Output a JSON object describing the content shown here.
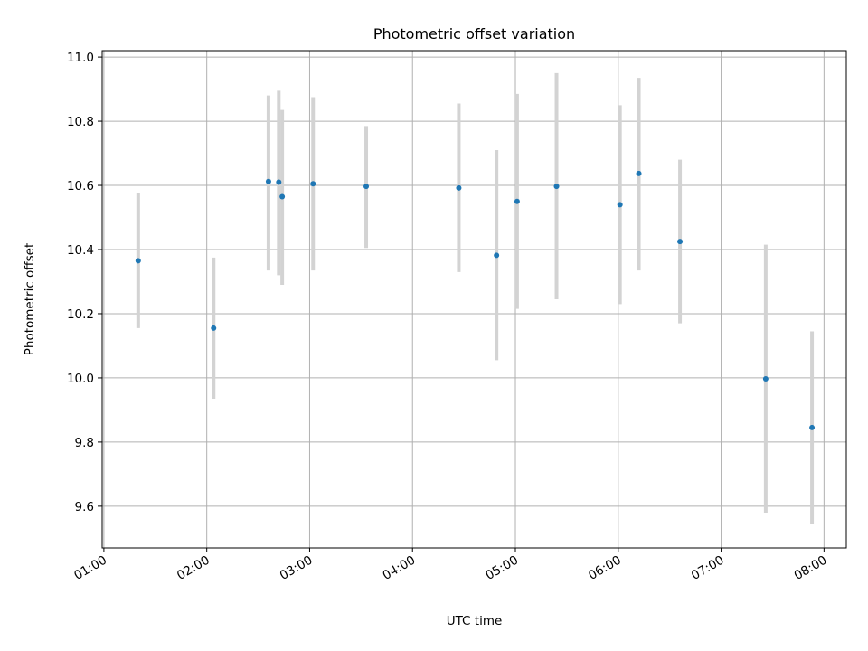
{
  "chart_data": {
    "type": "scatter",
    "title": "Photometric offset variation",
    "xlabel": "UTC time",
    "ylabel": "Photometric offset",
    "x_tick_labels": [
      "01:00",
      "02:00",
      "03:00",
      "04:00",
      "05:00",
      "06:00",
      "07:00",
      "08:00"
    ],
    "y_tick_labels": [
      "9.6",
      "9.8",
      "10.0",
      "10.2",
      "10.4",
      "10.6",
      "10.8",
      "11.0"
    ],
    "xlim": [
      "00:59",
      "08:13"
    ],
    "ylim": [
      9.47,
      11.02
    ],
    "grid": true,
    "colors": {
      "point": "#1f77b4",
      "errorbar": "#d3d3d3",
      "grid": "#b0b0b0"
    },
    "points": [
      {
        "x": "01:20",
        "y": 10.365,
        "low": 10.155,
        "high": 10.575
      },
      {
        "x": "02:04",
        "y": 10.155,
        "low": 9.935,
        "high": 10.375
      },
      {
        "x": "02:36",
        "y": 10.612,
        "low": 10.335,
        "high": 10.88
      },
      {
        "x": "02:42",
        "y": 10.61,
        "low": 10.32,
        "high": 10.895
      },
      {
        "x": "02:44",
        "y": 10.565,
        "low": 10.29,
        "high": 10.835
      },
      {
        "x": "03:02",
        "y": 10.605,
        "low": 10.335,
        "high": 10.875
      },
      {
        "x": "03:33",
        "y": 10.597,
        "low": 10.405,
        "high": 10.785
      },
      {
        "x": "04:27",
        "y": 10.592,
        "low": 10.33,
        "high": 10.855
      },
      {
        "x": "04:49",
        "y": 10.382,
        "low": 10.055,
        "high": 10.71
      },
      {
        "x": "05:01",
        "y": 10.55,
        "low": 10.215,
        "high": 10.885
      },
      {
        "x": "05:24",
        "y": 10.597,
        "low": 10.245,
        "high": 10.95
      },
      {
        "x": "06:01",
        "y": 10.54,
        "low": 10.23,
        "high": 10.85
      },
      {
        "x": "06:12",
        "y": 10.637,
        "low": 10.335,
        "high": 10.935
      },
      {
        "x": "06:36",
        "y": 10.425,
        "low": 10.17,
        "high": 10.68
      },
      {
        "x": "07:26",
        "y": 9.997,
        "low": 9.58,
        "high": 10.415
      },
      {
        "x": "07:53",
        "y": 9.845,
        "low": 9.545,
        "high": 10.145
      }
    ]
  }
}
